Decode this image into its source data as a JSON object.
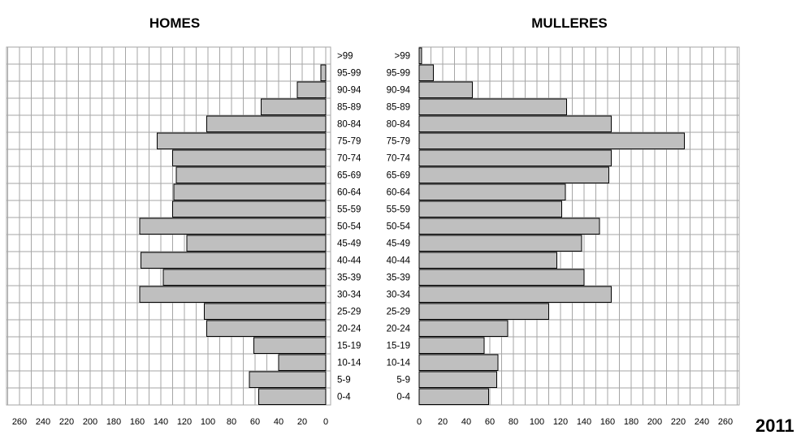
{
  "chart_data": [
    {
      "type": "bar",
      "title": "HOMES",
      "orientation": "horizontal",
      "direction": "reversed",
      "categories": [
        ">99",
        "95-99",
        "90-94",
        "85-89",
        "80-84",
        "75-79",
        "70-74",
        "65-69",
        "60-64",
        "55-59",
        "50-54",
        "45-49",
        "40-44",
        "35-39",
        "30-34",
        "25-29",
        "20-24",
        "15-19",
        "10-14",
        "5-9",
        "0-4"
      ],
      "values": [
        0,
        4,
        24,
        55,
        101,
        143,
        130,
        127,
        129,
        130,
        158,
        118,
        157,
        138,
        158,
        103,
        101,
        61,
        40,
        65,
        57
      ],
      "xlim": [
        0,
        270
      ],
      "xticks": [
        260,
        240,
        220,
        200,
        180,
        160,
        140,
        120,
        100,
        80,
        60,
        40,
        20,
        0
      ],
      "grid": true
    },
    {
      "type": "bar",
      "title": "MULLERES",
      "orientation": "horizontal",
      "categories": [
        ">99",
        "95-99",
        "90-94",
        "85-89",
        "80-84",
        "75-79",
        "70-74",
        "65-69",
        "60-64",
        "55-59",
        "50-54",
        "45-49",
        "40-44",
        "35-39",
        "30-34",
        "25-29",
        "20-24",
        "15-19",
        "10-14",
        "5-9",
        "0-4"
      ],
      "values": [
        2,
        12,
        45,
        125,
        163,
        225,
        163,
        161,
        124,
        121,
        153,
        138,
        117,
        140,
        163,
        110,
        75,
        55,
        67,
        66,
        59
      ],
      "xlim": [
        0,
        270
      ],
      "xticks": [
        0,
        20,
        40,
        60,
        80,
        100,
        120,
        140,
        160,
        180,
        200,
        220,
        240,
        260
      ],
      "grid": true
    }
  ],
  "year_label": "2011"
}
